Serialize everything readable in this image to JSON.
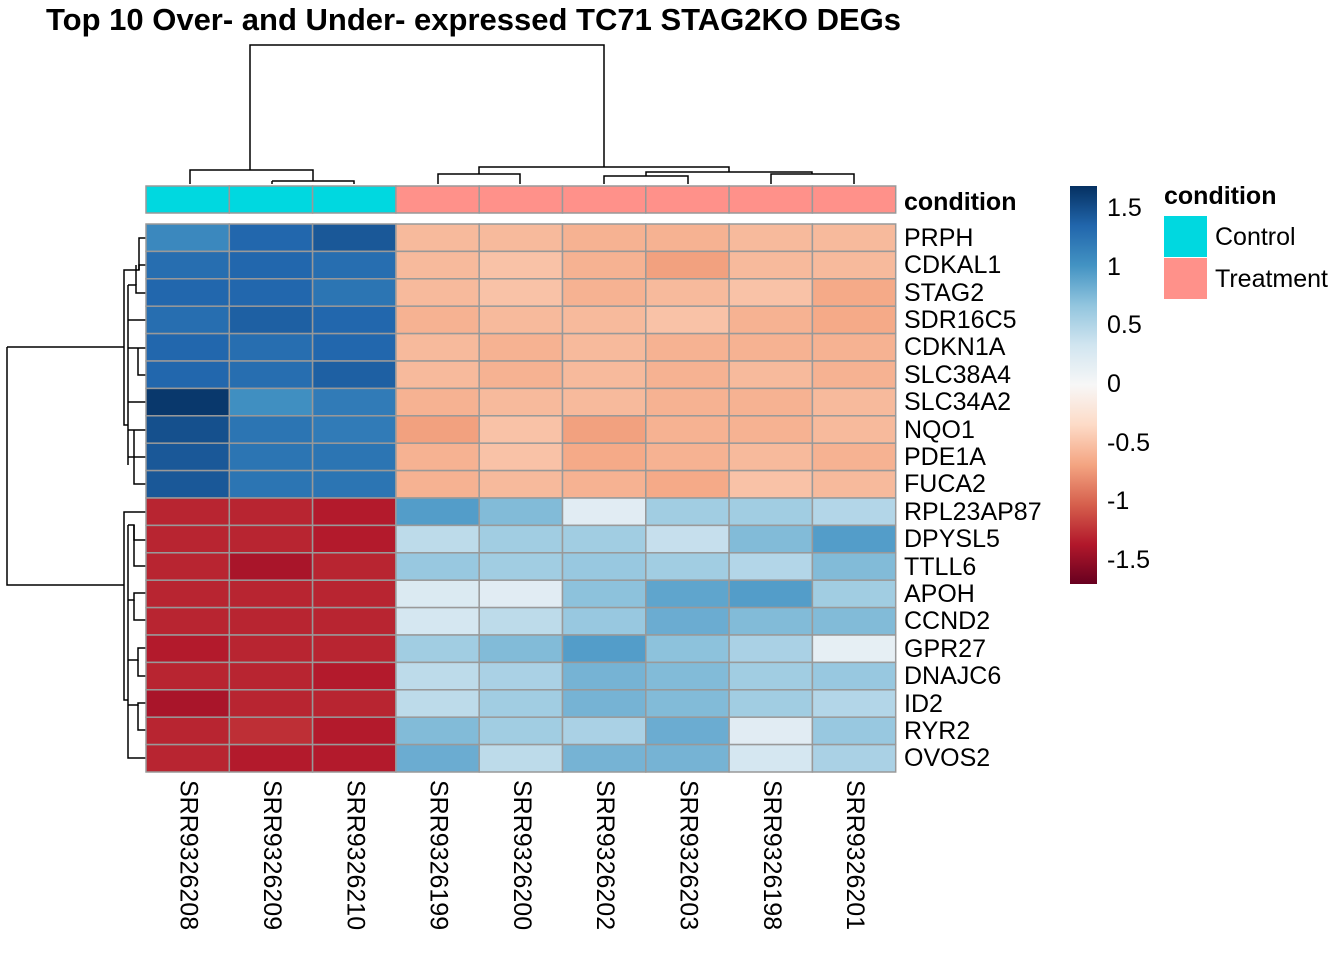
{
  "chart_data": {
    "type": "heatmap",
    "title": "Top 10 Over- and Under- expressed TC71 STAG2KO DEGs",
    "columns": [
      "SRR9326208",
      "SRR9326209",
      "SRR9326210",
      "SRR9326199",
      "SRR9326200",
      "SRR9326202",
      "SRR9326203",
      "SRR9326198",
      "SRR9326201"
    ],
    "rows": [
      "PRPH",
      "CDKAL1",
      "STAG2",
      "SDR16C5",
      "CDKN1A",
      "SLC38A4",
      "SLC34A2",
      "NQO1",
      "PDE1A",
      "FUCA2",
      "RPL23AP87",
      "DPYSL5",
      "TTLL6",
      "APOH",
      "CCND2",
      "GPR27",
      "DNAJC6",
      "ID2",
      "RYR2",
      "OVOS2"
    ],
    "values": [
      [
        1.1,
        1.35,
        1.45,
        -0.55,
        -0.55,
        -0.6,
        -0.6,
        -0.55,
        -0.55
      ],
      [
        1.3,
        1.35,
        1.3,
        -0.55,
        -0.5,
        -0.6,
        -0.7,
        -0.55,
        -0.55
      ],
      [
        1.35,
        1.35,
        1.25,
        -0.55,
        -0.5,
        -0.6,
        -0.55,
        -0.5,
        -0.65
      ],
      [
        1.3,
        1.4,
        1.35,
        -0.6,
        -0.55,
        -0.55,
        -0.5,
        -0.6,
        -0.65
      ],
      [
        1.35,
        1.3,
        1.35,
        -0.55,
        -0.6,
        -0.55,
        -0.6,
        -0.6,
        -0.6
      ],
      [
        1.35,
        1.3,
        1.4,
        -0.55,
        -0.6,
        -0.55,
        -0.6,
        -0.55,
        -0.6
      ],
      [
        1.65,
        1.05,
        1.2,
        -0.6,
        -0.55,
        -0.55,
        -0.6,
        -0.6,
        -0.55
      ],
      [
        1.5,
        1.25,
        1.2,
        -0.7,
        -0.5,
        -0.7,
        -0.6,
        -0.6,
        -0.55
      ],
      [
        1.45,
        1.25,
        1.25,
        -0.6,
        -0.5,
        -0.65,
        -0.6,
        -0.55,
        -0.6
      ],
      [
        1.45,
        1.25,
        1.25,
        -0.6,
        -0.55,
        -0.6,
        -0.65,
        -0.5,
        -0.55
      ],
      [
        -1.3,
        -1.3,
        -1.35,
        0.95,
        0.75,
        0.2,
        0.6,
        0.6,
        0.5
      ],
      [
        -1.3,
        -1.3,
        -1.35,
        0.45,
        0.6,
        0.6,
        0.4,
        0.75,
        0.95
      ],
      [
        -1.3,
        -1.4,
        -1.3,
        0.65,
        0.6,
        0.65,
        0.6,
        0.5,
        0.75
      ],
      [
        -1.3,
        -1.3,
        -1.3,
        0.25,
        0.2,
        0.7,
        0.9,
        0.95,
        0.6
      ],
      [
        -1.3,
        -1.3,
        -1.3,
        0.3,
        0.45,
        0.65,
        0.85,
        0.75,
        0.75
      ],
      [
        -1.35,
        -1.3,
        -1.3,
        0.6,
        0.75,
        0.95,
        0.7,
        0.55,
        0.15
      ],
      [
        -1.3,
        -1.3,
        -1.35,
        0.45,
        0.55,
        0.8,
        0.75,
        0.6,
        0.65
      ],
      [
        -1.4,
        -1.3,
        -1.3,
        0.45,
        0.6,
        0.8,
        0.75,
        0.6,
        0.5
      ],
      [
        -1.3,
        -1.25,
        -1.35,
        0.75,
        0.6,
        0.55,
        0.85,
        0.2,
        0.65
      ],
      [
        -1.3,
        -1.35,
        -1.35,
        0.85,
        0.45,
        0.8,
        0.8,
        0.3,
        0.55
      ]
    ],
    "column_annotation": {
      "name": "condition",
      "values": [
        "Control",
        "Control",
        "Control",
        "Treatment",
        "Treatment",
        "Treatment",
        "Treatment",
        "Treatment",
        "Treatment"
      ]
    },
    "legend": {
      "title": "condition",
      "items": [
        {
          "label": "Control",
          "color": "#00d8e0"
        },
        {
          "label": "Treatment",
          "color": "#ff918a"
        }
      ]
    },
    "colorbar": {
      "range": [
        -1.7,
        1.7
      ],
      "ticks": [
        1.5,
        1,
        0.5,
        0,
        -0.5,
        -1,
        -1.5
      ],
      "tick_labels": [
        "1.5",
        "1",
        "0.5",
        "0",
        "-0.5",
        "-1",
        "-1.5"
      ],
      "palette": [
        "#053061",
        "#2166ac",
        "#4393c3",
        "#92c5de",
        "#d1e5f0",
        "#f7f7f7",
        "#fddbc7",
        "#f4a582",
        "#d6604d",
        "#b2182b",
        "#67001f"
      ]
    },
    "cell_border_color": "#999999",
    "dendrograms": {
      "row": "shown",
      "column": "shown"
    }
  }
}
